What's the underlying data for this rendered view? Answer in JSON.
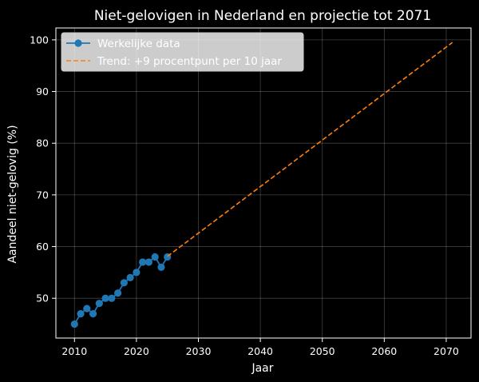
{
  "chart_data": {
    "type": "line",
    "title": "Niet-gelovigen in Nederland en projectie tot 2071",
    "xlabel": "Jaar",
    "ylabel": "Aandeel niet-gelovig (%)",
    "xlim": [
      2007,
      2074
    ],
    "ylim": [
      42.3,
      102.3
    ],
    "xticks": [
      2010,
      2020,
      2030,
      2040,
      2050,
      2060,
      2070
    ],
    "yticks": [
      50,
      60,
      70,
      80,
      90,
      100
    ],
    "grid": true,
    "legend_position": "top-left",
    "series": [
      {
        "name": "Werkelijke data",
        "style": "line-markers",
        "color": "#1f77b4",
        "x": [
          2010,
          2011,
          2012,
          2013,
          2014,
          2015,
          2016,
          2017,
          2018,
          2019,
          2020,
          2021,
          2022,
          2023,
          2024,
          2025
        ],
        "y": [
          45,
          47,
          48,
          47,
          49,
          50,
          50,
          51,
          53,
          54,
          55,
          57,
          57,
          58,
          56,
          58
        ]
      },
      {
        "name": "Trend: +9 procentpunt per 10 jaar",
        "style": "dashed",
        "color": "#ff7f0e",
        "x": [
          2025,
          2071
        ],
        "y": [
          58.1,
          99.5
        ]
      }
    ]
  }
}
